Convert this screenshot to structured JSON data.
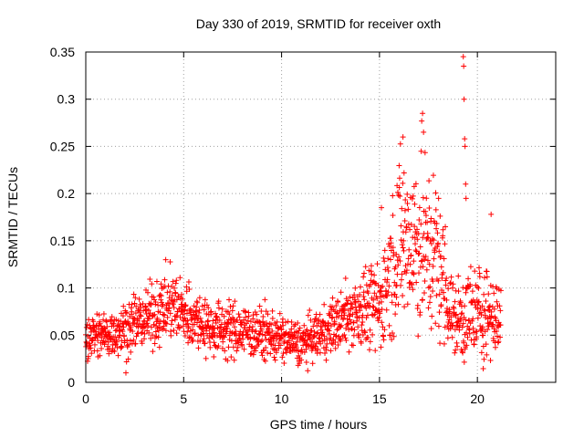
{
  "chart_data": {
    "type": "scatter",
    "title": "Day 330 of 2019, SRMTID for receiver oxth",
    "xlabel": "GPS time / hours",
    "ylabel": "SRMTID / TECUs",
    "xlim": [
      0,
      24
    ],
    "ylim": [
      0,
      0.35
    ],
    "xticks": [
      0,
      5,
      10,
      15,
      20
    ],
    "xtick_labels": [
      "0",
      "5",
      "10",
      "15",
      "20"
    ],
    "yticks": [
      0,
      0.05,
      0.1,
      0.15,
      0.2,
      0.25,
      0.3,
      0.35
    ],
    "ytick_labels": [
      "0",
      "0.05",
      "0.1",
      "0.15",
      "0.2",
      "0.25",
      "0.3",
      "0.35"
    ],
    "grid": true,
    "marker": "+",
    "color": "#ff0000",
    "series_profile": [
      {
        "x": 0.0,
        "y": 0.05,
        "spread": 0.012
      },
      {
        "x": 1.0,
        "y": 0.05,
        "spread": 0.012
      },
      {
        "x": 2.0,
        "y": 0.058,
        "spread": 0.014
      },
      {
        "x": 3.0,
        "y": 0.066,
        "spread": 0.015
      },
      {
        "x": 4.3,
        "y": 0.083,
        "spread": 0.018
      },
      {
        "x": 5.5,
        "y": 0.068,
        "spread": 0.016
      },
      {
        "x": 6.5,
        "y": 0.057,
        "spread": 0.014
      },
      {
        "x": 8.0,
        "y": 0.055,
        "spread": 0.014
      },
      {
        "x": 9.5,
        "y": 0.05,
        "spread": 0.013
      },
      {
        "x": 11.0,
        "y": 0.04,
        "spread": 0.011
      },
      {
        "x": 12.5,
        "y": 0.058,
        "spread": 0.013
      },
      {
        "x": 14.0,
        "y": 0.078,
        "spread": 0.02
      },
      {
        "x": 15.0,
        "y": 0.08,
        "spread": 0.022
      },
      {
        "x": 16.0,
        "y": 0.15,
        "spread": 0.045
      },
      {
        "x": 17.0,
        "y": 0.15,
        "spread": 0.05
      },
      {
        "x": 18.0,
        "y": 0.13,
        "spread": 0.04
      },
      {
        "x": 18.8,
        "y": 0.065,
        "spread": 0.02
      },
      {
        "x": 19.5,
        "y": 0.07,
        "spread": 0.025
      },
      {
        "x": 20.5,
        "y": 0.075,
        "spread": 0.025
      },
      {
        "x": 21.2,
        "y": 0.065,
        "spread": 0.015
      }
    ],
    "x_end": 21.2,
    "outliers": [
      {
        "x": 19.28,
        "y": 0.345
      },
      {
        "x": 19.3,
        "y": 0.335
      },
      {
        "x": 19.32,
        "y": 0.3
      },
      {
        "x": 19.35,
        "y": 0.258
      },
      {
        "x": 19.37,
        "y": 0.25
      },
      {
        "x": 19.4,
        "y": 0.21
      },
      {
        "x": 19.42,
        "y": 0.195
      },
      {
        "x": 17.2,
        "y": 0.285
      },
      {
        "x": 17.25,
        "y": 0.265
      },
      {
        "x": 16.2,
        "y": 0.26
      },
      {
        "x": 20.7,
        "y": 0.178
      },
      {
        "x": 15.1,
        "y": 0.185
      },
      {
        "x": 2.05,
        "y": 0.01
      }
    ]
  }
}
